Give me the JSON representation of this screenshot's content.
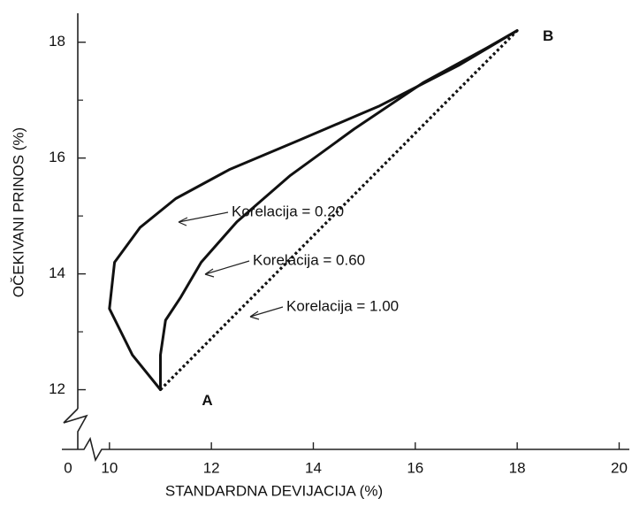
{
  "chart_data": {
    "type": "line",
    "x_label": "STANDARDNA DEVIJACIJA (%)",
    "y_label": "OČEKIVANI PRINOS (%)",
    "origin_label": "0",
    "axis_break": true,
    "xlim": [
      9.5,
      20.2
    ],
    "ylim": [
      11,
      18.5
    ],
    "xticks": [
      10,
      12,
      14,
      16,
      18,
      20
    ],
    "yticks": [
      12,
      14,
      16,
      18
    ],
    "yminor_ticks": [
      13,
      15,
      17
    ],
    "points": [
      {
        "label": "A",
        "x": 11,
        "y": 12
      },
      {
        "label": "B",
        "x": 18,
        "y": 18.2
      }
    ],
    "series": [
      {
        "name": "Korelacija = 0.20",
        "color": "#111111",
        "style": "solid",
        "x": [
          11,
          10.45,
          10.0,
          10.1,
          10.6,
          11.3,
          12.35,
          13.7,
          15.3,
          16.85,
          18
        ],
        "values": [
          12,
          12.6,
          13.4,
          14.2,
          14.8,
          15.3,
          15.8,
          16.3,
          16.9,
          17.6,
          18.2
        ]
      },
      {
        "name": "Korelacija = 0.60",
        "color": "#111111",
        "style": "solid",
        "x": [
          11,
          11.0,
          11.1,
          11.4,
          11.8,
          12.5,
          13.55,
          14.8,
          16.15,
          17.4,
          18
        ],
        "values": [
          12,
          12.6,
          13.2,
          13.6,
          14.2,
          14.9,
          15.7,
          16.5,
          17.3,
          17.9,
          18.2
        ]
      },
      {
        "name": "Korelacija = 1.00",
        "color": "#111111",
        "style": "dotted",
        "x": [
          11,
          18
        ],
        "values": [
          12,
          18.2
        ]
      }
    ]
  }
}
